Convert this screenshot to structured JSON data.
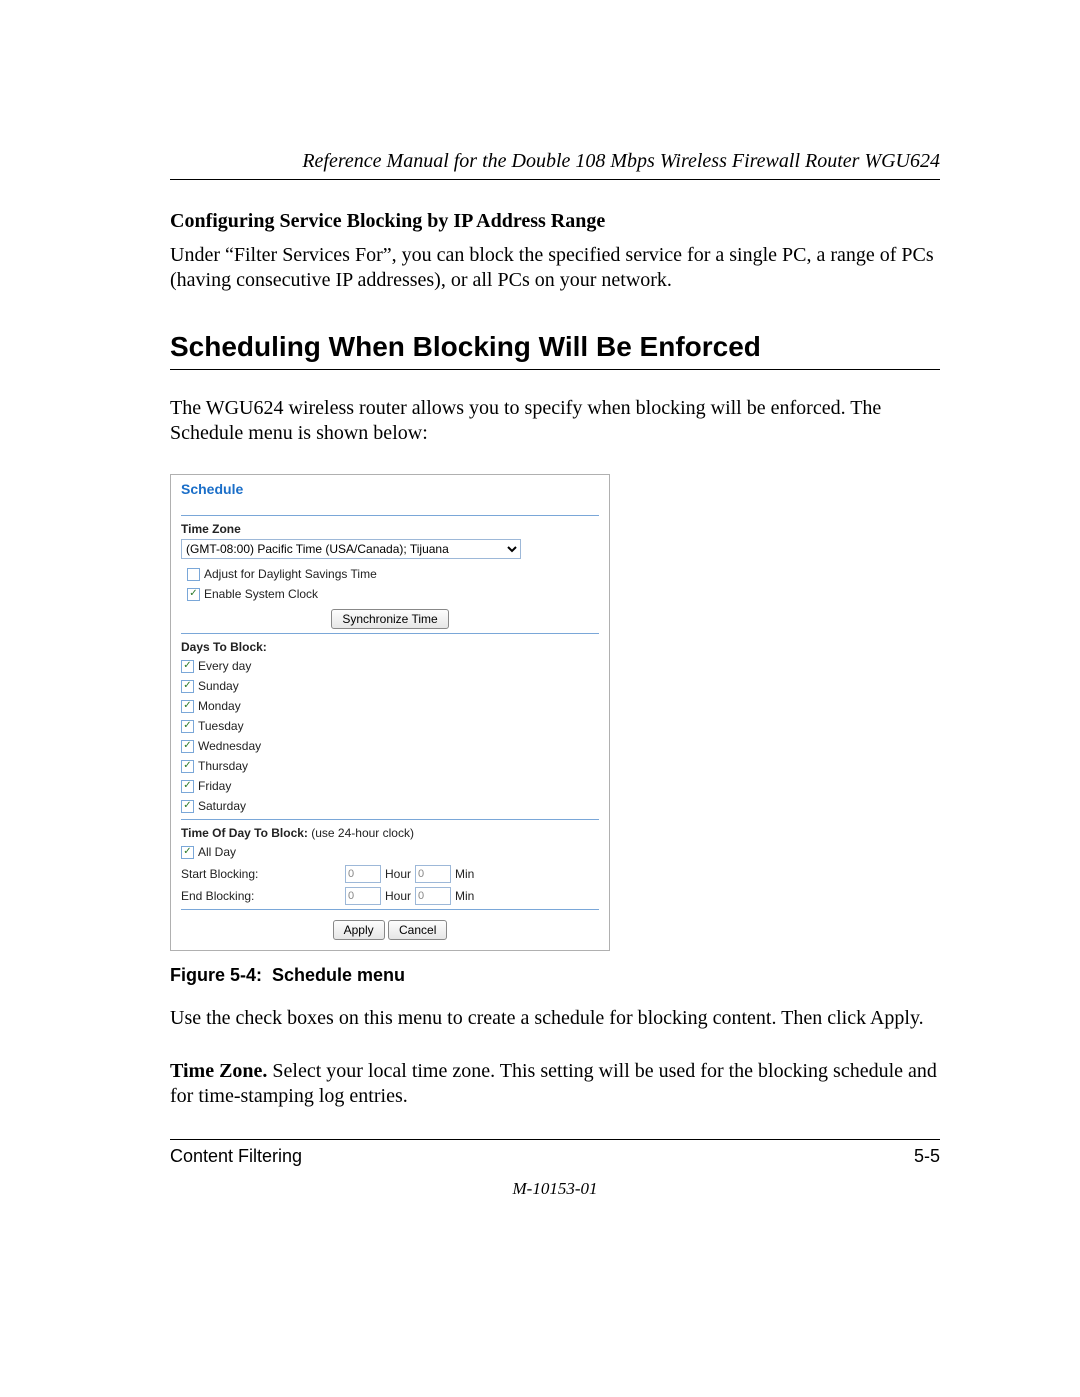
{
  "header": {
    "title": "Reference Manual for the Double 108 Mbps Wireless Firewall Router WGU624"
  },
  "section1": {
    "heading": "Configuring Service Blocking by IP Address Range",
    "para": "Under “Filter Services For”, you can block the specified service for a single PC, a range of PCs (having consecutive IP addresses), or all PCs on your network."
  },
  "section2": {
    "heading": "Scheduling When Blocking Will Be Enforced",
    "para": "The WGU624 wireless router allows you to specify when blocking will be enforced. The Schedule menu is shown below:"
  },
  "ui": {
    "title": "Schedule",
    "timezone_label": "Time Zone",
    "timezone_value": "(GMT-08:00) Pacific Time (USA/Canada); Tijuana",
    "adjust_dst": {
      "checked": false,
      "label": "Adjust for Daylight Savings Time"
    },
    "enable_clock": {
      "checked": true,
      "label": "Enable System Clock"
    },
    "sync_btn": "Synchronize Time",
    "days_label": "Days To Block:",
    "days": [
      {
        "label": "Every day",
        "checked": true
      },
      {
        "label": "Sunday",
        "checked": true
      },
      {
        "label": "Monday",
        "checked": true
      },
      {
        "label": "Tuesday",
        "checked": true
      },
      {
        "label": "Wednesday",
        "checked": true
      },
      {
        "label": "Thursday",
        "checked": true
      },
      {
        "label": "Friday",
        "checked": true
      },
      {
        "label": "Saturday",
        "checked": true
      }
    ],
    "tod_label": "Time Of Day To Block: ",
    "tod_note": "(use 24-hour clock)",
    "all_day": {
      "checked": true,
      "label": "All Day"
    },
    "start_label": "Start Blocking:",
    "end_label": "End Blocking:",
    "hour_unit": "Hour",
    "min_unit": "Min",
    "start_hour": "0",
    "start_min": "0",
    "end_hour": "0",
    "end_min": "0",
    "apply_btn": "Apply",
    "cancel_btn": "Cancel"
  },
  "figure_caption": "Figure 5-4:  Schedule menu",
  "para3": "Use the check boxes on this menu to create a schedule for blocking content. Then click Apply.",
  "para4_lead": "Time Zone.",
  "para4_rest": " Select your local time zone. This setting will be used for the blocking schedule and for time-stamping log entries.",
  "footer": {
    "left": "Content Filtering",
    "right": "5-5",
    "docid": "M-10153-01"
  },
  "checkmark_glyph": "✓"
}
